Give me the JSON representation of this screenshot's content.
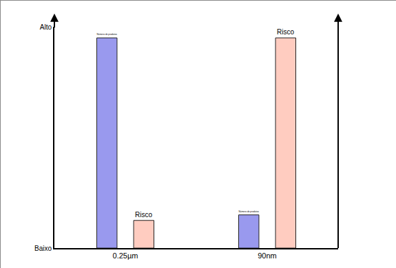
{
  "chart_data": {
    "type": "bar",
    "categories": [
      "0.25µm",
      "90nm"
    ],
    "series": [
      {
        "name": "Número de produtos",
        "color": "#9999ee",
        "values": [
          9.5,
          1.5
        ]
      },
      {
        "name": "Risco",
        "color": "#ffccc0",
        "values": [
          1.25,
          9.5
        ]
      }
    ],
    "ylim": [
      0,
      10
    ],
    "yticks": [
      {
        "value": 0,
        "label": "Baixo"
      },
      {
        "value": 10,
        "label": "Alto"
      }
    ],
    "grid": false
  }
}
